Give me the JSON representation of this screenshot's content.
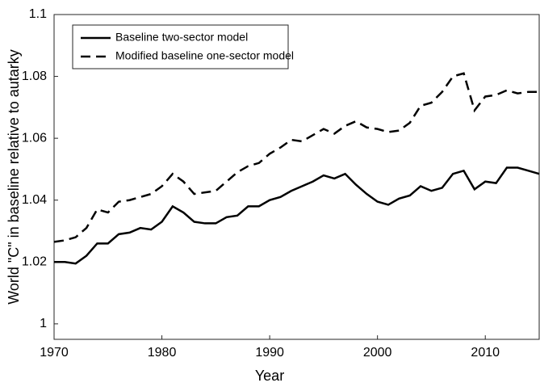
{
  "chart_data": {
    "type": "line",
    "xlabel": "Year",
    "ylabel": "World \"C\" in baseline relative to autarky",
    "x": [
      1970,
      1971,
      1972,
      1973,
      1974,
      1975,
      1976,
      1977,
      1978,
      1979,
      1980,
      1981,
      1982,
      1983,
      1984,
      1985,
      1986,
      1987,
      1988,
      1989,
      1990,
      1991,
      1992,
      1993,
      1994,
      1995,
      1996,
      1997,
      1998,
      1999,
      2000,
      2001,
      2002,
      2003,
      2004,
      2005,
      2006,
      2007,
      2008,
      2009,
      2010,
      2011,
      2012,
      2013,
      2014,
      2015
    ],
    "series": [
      {
        "name": "Baseline two-sector model",
        "color": "#000000",
        "dash": "solid",
        "values": [
          1.02,
          1.02,
          1.0195,
          1.022,
          1.026,
          1.026,
          1.029,
          1.0295,
          1.031,
          1.0305,
          1.033,
          1.038,
          1.036,
          1.033,
          1.0325,
          1.0325,
          1.0345,
          1.035,
          1.038,
          1.038,
          1.04,
          1.041,
          1.043,
          1.0445,
          1.046,
          1.048,
          1.047,
          1.0485,
          1.045,
          1.042,
          1.0395,
          1.0385,
          1.0405,
          1.0415,
          1.0445,
          1.043,
          1.044,
          1.0485,
          1.0495,
          1.0435,
          1.046,
          1.0455,
          1.0505,
          1.0505,
          1.0495,
          1.0485
        ]
      },
      {
        "name": "Modified baseline one-sector model",
        "color": "#000000",
        "dash": "dashed",
        "values": [
          1.0265,
          1.027,
          1.028,
          1.031,
          1.037,
          1.036,
          1.0395,
          1.04,
          1.041,
          1.042,
          1.0445,
          1.0485,
          1.046,
          1.042,
          1.0425,
          1.043,
          1.046,
          1.049,
          1.051,
          1.052,
          1.055,
          1.057,
          1.0595,
          1.059,
          1.061,
          1.063,
          1.0615,
          1.064,
          1.0655,
          1.0635,
          1.063,
          1.062,
          1.0625,
          1.065,
          1.0705,
          1.0715,
          1.075,
          1.08,
          1.081,
          1.069,
          1.0735,
          1.074,
          1.0755,
          1.0745,
          1.075,
          1.075
        ]
      }
    ],
    "xlim": [
      1970,
      2015
    ],
    "xticks": [
      1970,
      1980,
      1990,
      2000,
      2010
    ],
    "ylim": [
      0.995,
      1.1
    ],
    "yticks": [
      1,
      1.02,
      1.04,
      1.06,
      1.08,
      1.1
    ],
    "grid": false,
    "legend": "upper left"
  }
}
